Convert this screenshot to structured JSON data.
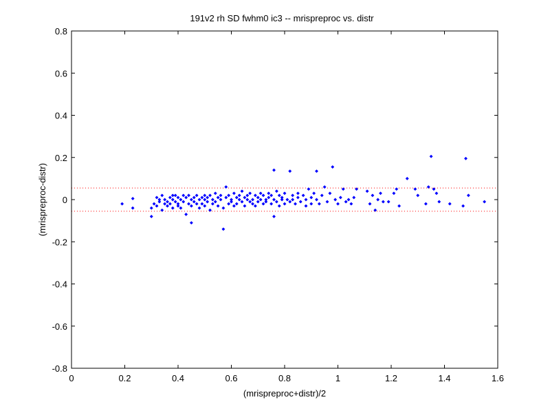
{
  "chart_data": {
    "type": "scatter",
    "title": "191v2 rh SD fwhm0 ic3 -- mrispreproc vs. distr",
    "xlabel": "(mrispreproc+distr)/2",
    "ylabel": "(mrispreproc-distr)",
    "xlim": [
      0,
      1.6
    ],
    "ylim": [
      -0.8,
      0.8
    ],
    "x_ticks": [
      0,
      0.2,
      0.4,
      0.6,
      0.8,
      1,
      1.2,
      1.4,
      1.6
    ],
    "x_tick_labels": [
      "0",
      "0.2",
      "0.4",
      "0.6",
      "0.8",
      "1",
      "1.2",
      "1.4",
      "1.6"
    ],
    "y_ticks": [
      -0.8,
      -0.6,
      -0.4,
      -0.2,
      0,
      0.2,
      0.4,
      0.6,
      0.8
    ],
    "y_tick_labels": [
      "-0.8",
      "-0.6",
      "-0.4",
      "-0.2",
      "0",
      "0.2",
      "0.4",
      "0.6",
      "0.8"
    ],
    "grid": false,
    "reference_lines": [
      0.055,
      -0.055
    ],
    "marker_color": "#0000ff",
    "reference_line_color": "#ff0000",
    "points": [
      [
        0.19,
        -0.02
      ],
      [
        0.23,
        0.005
      ],
      [
        0.23,
        -0.04
      ],
      [
        0.3,
        -0.08
      ],
      [
        0.3,
        -0.04
      ],
      [
        0.31,
        -0.02
      ],
      [
        0.32,
        0.01
      ],
      [
        0.32,
        -0.03
      ],
      [
        0.33,
        0.0
      ],
      [
        0.33,
        -0.01
      ],
      [
        0.34,
        -0.05
      ],
      [
        0.34,
        0.02
      ],
      [
        0.35,
        -0.02
      ],
      [
        0.35,
        0.0
      ],
      [
        0.36,
        -0.01
      ],
      [
        0.36,
        -0.03
      ],
      [
        0.37,
        0.01
      ],
      [
        0.37,
        -0.02
      ],
      [
        0.38,
        0.02
      ],
      [
        0.38,
        -0.04
      ],
      [
        0.38,
        0.0
      ],
      [
        0.39,
        -0.01
      ],
      [
        0.39,
        0.02
      ],
      [
        0.4,
        -0.02
      ],
      [
        0.4,
        0.01
      ],
      [
        0.4,
        -0.03
      ],
      [
        0.41,
        0.0
      ],
      [
        0.41,
        -0.04
      ],
      [
        0.42,
        0.02
      ],
      [
        0.42,
        -0.01
      ],
      [
        0.43,
        -0.07
      ],
      [
        0.43,
        0.01
      ],
      [
        0.44,
        -0.02
      ],
      [
        0.44,
        0.02
      ],
      [
        0.45,
        -0.11
      ],
      [
        0.45,
        0.0
      ],
      [
        0.45,
        -0.03
      ],
      [
        0.46,
        0.01
      ],
      [
        0.46,
        -0.01
      ],
      [
        0.47,
        0.02
      ],
      [
        0.47,
        -0.02
      ],
      [
        0.48,
        0.0
      ],
      [
        0.48,
        -0.04
      ],
      [
        0.49,
        0.01
      ],
      [
        0.49,
        -0.02
      ],
      [
        0.5,
        0.02
      ],
      [
        0.5,
        0.0
      ],
      [
        0.5,
        -0.03
      ],
      [
        0.51,
        0.01
      ],
      [
        0.51,
        -0.01
      ],
      [
        0.52,
        0.02
      ],
      [
        0.52,
        -0.05
      ],
      [
        0.53,
        0.0
      ],
      [
        0.53,
        -0.02
      ],
      [
        0.54,
        0.03
      ],
      [
        0.54,
        -0.01
      ],
      [
        0.55,
        0.01
      ],
      [
        0.55,
        -0.03
      ],
      [
        0.56,
        0.0
      ],
      [
        0.56,
        0.02
      ],
      [
        0.57,
        -0.14
      ],
      [
        0.57,
        -0.04
      ],
      [
        0.58,
        0.06
      ],
      [
        0.58,
        0.01
      ],
      [
        0.59,
        -0.02
      ],
      [
        0.59,
        0.02
      ],
      [
        0.6,
        0.0
      ],
      [
        0.6,
        -0.01
      ],
      [
        0.61,
        0.03
      ],
      [
        0.61,
        -0.03
      ],
      [
        0.62,
        0.01
      ],
      [
        0.62,
        -0.02
      ],
      [
        0.63,
        0.0
      ],
      [
        0.63,
        0.02
      ],
      [
        0.64,
        -0.01
      ],
      [
        0.64,
        0.04
      ],
      [
        0.65,
        0.01
      ],
      [
        0.65,
        -0.03
      ],
      [
        0.66,
        0.0
      ],
      [
        0.66,
        0.02
      ],
      [
        0.67,
        -0.01
      ],
      [
        0.67,
        0.03
      ],
      [
        0.68,
        0.0
      ],
      [
        0.68,
        -0.02
      ],
      [
        0.69,
        0.02
      ],
      [
        0.69,
        -0.03
      ],
      [
        0.7,
        0.01
      ],
      [
        0.7,
        -0.01
      ],
      [
        0.71,
        0.03
      ],
      [
        0.71,
        0.0
      ],
      [
        0.72,
        -0.02
      ],
      [
        0.72,
        0.02
      ],
      [
        0.73,
        0.0
      ],
      [
        0.73,
        -0.01
      ],
      [
        0.74,
        0.03
      ],
      [
        0.74,
        0.01
      ],
      [
        0.75,
        -0.02
      ],
      [
        0.75,
        0.02
      ],
      [
        0.76,
        0.14
      ],
      [
        0.76,
        -0.08
      ],
      [
        0.76,
        0.0
      ],
      [
        0.77,
        0.04
      ],
      [
        0.77,
        -0.01
      ],
      [
        0.78,
        0.02
      ],
      [
        0.78,
        -0.03
      ],
      [
        0.79,
        0.01
      ],
      [
        0.79,
        0.0
      ],
      [
        0.8,
        -0.02
      ],
      [
        0.8,
        0.03
      ],
      [
        0.81,
        0.0
      ],
      [
        0.82,
        0.135
      ],
      [
        0.82,
        -0.01
      ],
      [
        0.83,
        0.02
      ],
      [
        0.83,
        0.0
      ],
      [
        0.84,
        -0.02
      ],
      [
        0.85,
        0.01
      ],
      [
        0.85,
        0.03
      ],
      [
        0.86,
        -0.01
      ],
      [
        0.87,
        0.02
      ],
      [
        0.88,
        0.0
      ],
      [
        0.88,
        -0.03
      ],
      [
        0.89,
        0.05
      ],
      [
        0.9,
        -0.02
      ],
      [
        0.9,
        0.01
      ],
      [
        0.91,
        0.03
      ],
      [
        0.92,
        0.0
      ],
      [
        0.92,
        0.135
      ],
      [
        0.93,
        -0.02
      ],
      [
        0.94,
        0.02
      ],
      [
        0.95,
        0.06
      ],
      [
        0.96,
        -0.01
      ],
      [
        0.97,
        0.03
      ],
      [
        0.98,
        0.155
      ],
      [
        0.99,
        0.0
      ],
      [
        1.0,
        -0.02
      ],
      [
        1.01,
        0.01
      ],
      [
        1.02,
        0.05
      ],
      [
        1.03,
        -0.01
      ],
      [
        1.04,
        0.0
      ],
      [
        1.05,
        -0.02
      ],
      [
        1.06,
        0.01
      ],
      [
        1.07,
        0.05
      ],
      [
        1.11,
        0.04
      ],
      [
        1.12,
        -0.02
      ],
      [
        1.13,
        0.02
      ],
      [
        1.14,
        -0.05
      ],
      [
        1.15,
        0.0
      ],
      [
        1.16,
        0.03
      ],
      [
        1.17,
        -0.01
      ],
      [
        1.19,
        -0.01
      ],
      [
        1.21,
        0.03
      ],
      [
        1.22,
        0.05
      ],
      [
        1.23,
        -0.03
      ],
      [
        1.26,
        0.1
      ],
      [
        1.29,
        0.05
      ],
      [
        1.3,
        0.02
      ],
      [
        1.33,
        -0.02
      ],
      [
        1.34,
        0.06
      ],
      [
        1.35,
        0.205
      ],
      [
        1.36,
        0.05
      ],
      [
        1.37,
        0.03
      ],
      [
        1.38,
        -0.01
      ],
      [
        1.42,
        -0.02
      ],
      [
        1.47,
        -0.03
      ],
      [
        1.48,
        0.195
      ],
      [
        1.49,
        0.02
      ],
      [
        1.55,
        -0.01
      ]
    ]
  }
}
